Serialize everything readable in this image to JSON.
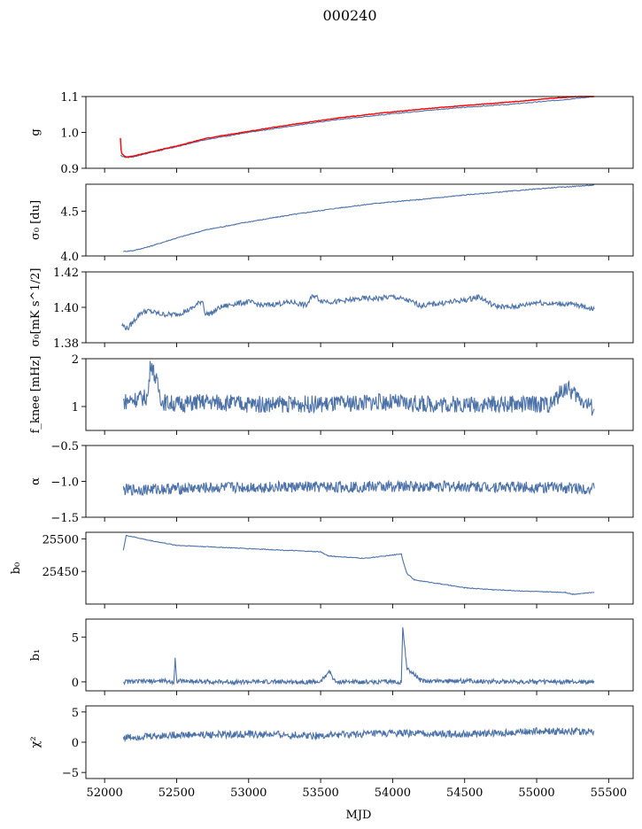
{
  "figure": {
    "title": "000240",
    "xlabel": "MJD",
    "x_tick_labels": [
      "52000",
      "52500",
      "53000",
      "53500",
      "54000",
      "54500",
      "55000",
      "55500"
    ]
  },
  "chart_data": [
    {
      "type": "line",
      "ylabel": "g",
      "xlim": [
        51870,
        55670
      ],
      "ylim": [
        0.9,
        1.1
      ],
      "y_ticks": [
        0.9,
        1.0,
        1.1
      ],
      "y_tick_labels": [
        "0.9",
        "1.0",
        "1.1"
      ],
      "series": [
        {
          "color": "#4c72a8",
          "x": [
            52110,
            52150,
            52200,
            52300,
            52500,
            52700,
            53000,
            53300,
            53600,
            53900,
            54200,
            54500,
            54800,
            55100,
            55400
          ],
          "y": [
            0.935,
            0.93,
            0.932,
            0.942,
            0.96,
            0.98,
            1.0,
            1.018,
            1.035,
            1.048,
            1.06,
            1.07,
            1.078,
            1.088,
            1.1
          ]
        },
        {
          "color": "#ff0000",
          "x": [
            52110,
            52115,
            52120,
            52135,
            52150,
            52200,
            52300,
            52500,
            52700,
            53000,
            53300,
            53600,
            53900,
            54200,
            54500,
            54800,
            55100,
            55400
          ],
          "y": [
            0.985,
            0.95,
            0.94,
            0.935,
            0.932,
            0.934,
            0.944,
            0.962,
            0.983,
            1.003,
            1.022,
            1.039,
            1.053,
            1.065,
            1.075,
            1.084,
            1.095,
            1.103
          ]
        }
      ]
    },
    {
      "type": "line",
      "ylabel": "σ₀ [du]",
      "xlim": [
        51870,
        55670
      ],
      "ylim": [
        4.0,
        4.8
      ],
      "y_ticks": [
        4.0,
        4.5
      ],
      "y_tick_labels": [
        "4.0",
        "4.5"
      ],
      "series": [
        {
          "color": "#4c72a8",
          "x": [
            52130,
            52200,
            52300,
            52500,
            52700,
            53000,
            53300,
            53600,
            53900,
            54200,
            54500,
            54800,
            55100,
            55400
          ],
          "y": [
            4.05,
            4.06,
            4.1,
            4.2,
            4.29,
            4.38,
            4.46,
            4.53,
            4.59,
            4.63,
            4.68,
            4.72,
            4.76,
            4.79
          ]
        }
      ]
    },
    {
      "type": "line",
      "ylabel": "σ₀[mK s^1/2]",
      "xlim": [
        51870,
        55670
      ],
      "ylim": [
        1.38,
        1.42
      ],
      "y_ticks": [
        1.38,
        1.4,
        1.42
      ],
      "y_tick_labels": [
        "1.38",
        "1.40",
        "1.42"
      ],
      "series": [
        {
          "color": "#4c72a8",
          "x": [
            52120,
            52160,
            52200,
            52250,
            52300,
            52400,
            52500,
            52600,
            52680,
            52700,
            52750,
            52800,
            52900,
            53000,
            53100,
            53200,
            53300,
            53400,
            53450,
            53500,
            53600,
            53700,
            53800,
            53900,
            54000,
            54100,
            54200,
            54300,
            54400,
            54500,
            54600,
            54700,
            54800,
            54900,
            55000,
            55100,
            55200,
            55300,
            55400
          ],
          "y": [
            1.39,
            1.388,
            1.392,
            1.397,
            1.398,
            1.396,
            1.396,
            1.399,
            1.404,
            1.396,
            1.397,
            1.4,
            1.402,
            1.403,
            1.401,
            1.402,
            1.403,
            1.401,
            1.407,
            1.404,
            1.403,
            1.404,
            1.405,
            1.405,
            1.406,
            1.404,
            1.401,
            1.402,
            1.403,
            1.404,
            1.406,
            1.401,
            1.4,
            1.401,
            1.403,
            1.402,
            1.402,
            1.401,
            1.399
          ]
        }
      ]
    },
    {
      "type": "line",
      "ylabel": "f_knee [mHz]",
      "xlim": [
        51870,
        55670
      ],
      "ylim": [
        0.5,
        2.0
      ],
      "y_ticks": [
        1,
        2
      ],
      "y_tick_labels": [
        "1",
        "2"
      ],
      "series": [
        {
          "color": "#4c72a8",
          "x": [
            52130,
            52200,
            52300,
            52320,
            52400,
            52500,
            52700,
            53000,
            53300,
            53600,
            53900,
            54200,
            54500,
            54800,
            55100,
            55200,
            55400
          ],
          "y": [
            1.1,
            1.15,
            1.2,
            1.95,
            1.1,
            1.05,
            1.1,
            1.05,
            1.05,
            1.05,
            1.1,
            1.05,
            1.05,
            1.05,
            1.05,
            1.4,
            0.95
          ]
        }
      ]
    },
    {
      "type": "line",
      "ylabel": "α",
      "xlim": [
        51870,
        55670
      ],
      "ylim": [
        -1.5,
        -0.5
      ],
      "y_ticks": [
        -1.5,
        -1.0,
        -0.5
      ],
      "y_tick_labels": [
        "−1.5",
        "−1.0",
        "−0.5"
      ],
      "series": [
        {
          "color": "#4c72a8",
          "x": [
            52130,
            52500,
            53000,
            53500,
            54000,
            54500,
            55000,
            55400
          ],
          "y": [
            -1.12,
            -1.1,
            -1.08,
            -1.08,
            -1.07,
            -1.07,
            -1.08,
            -1.1
          ]
        }
      ]
    },
    {
      "type": "line",
      "ylabel": "b₀",
      "xlim": [
        51870,
        55670
      ],
      "ylim": [
        25400,
        25510
      ],
      "y_ticks": [
        25450,
        25500
      ],
      "y_tick_labels": [
        "25450",
        "25500"
      ],
      "series": [
        {
          "color": "#4c72a8",
          "x": [
            52130,
            52150,
            52200,
            52300,
            52500,
            52700,
            53000,
            53300,
            53500,
            53550,
            53600,
            53800,
            54000,
            54060,
            54080,
            54100,
            54150,
            54300,
            54500,
            54700,
            55000,
            55200,
            55250,
            55400
          ],
          "y": [
            25483,
            25505,
            25503,
            25498,
            25490,
            25488,
            25485,
            25482,
            25480,
            25474,
            25473,
            25470,
            25475,
            25477,
            25460,
            25447,
            25437,
            25432,
            25425,
            25422,
            25419,
            25418,
            25415,
            25418
          ]
        }
      ]
    },
    {
      "type": "line",
      "ylabel": "b₁",
      "xlim": [
        51870,
        55670
      ],
      "ylim": [
        -1,
        7
      ],
      "y_ticks": [
        0,
        5
      ],
      "y_tick_labels": [
        "0",
        "5"
      ],
      "series": [
        {
          "color": "#4c72a8",
          "x": [
            52130,
            52400,
            52480,
            52490,
            52500,
            52800,
            53200,
            53500,
            53560,
            53600,
            54000,
            54060,
            54070,
            54100,
            54200,
            54500,
            55000,
            55400
          ],
          "y": [
            0.0,
            0.1,
            0.0,
            2.6,
            0.1,
            0.0,
            0.0,
            0.0,
            1.2,
            0.0,
            0.0,
            0.0,
            6.0,
            1.5,
            0.1,
            0.1,
            0.0,
            0.0
          ]
        }
      ]
    },
    {
      "type": "line",
      "ylabel": "χ²",
      "xlim": [
        51870,
        55670
      ],
      "ylim": [
        -6,
        6
      ],
      "y_ticks": [
        -5,
        0,
        5
      ],
      "y_tick_labels": [
        "−5",
        "0",
        "5"
      ],
      "series": [
        {
          "color": "#4c72a8",
          "x": [
            52130,
            52500,
            53000,
            53500,
            54000,
            54500,
            55000,
            55400
          ],
          "y": [
            0.8,
            1.2,
            1.3,
            1.1,
            1.5,
            1.3,
            1.8,
            1.8
          ]
        }
      ]
    }
  ]
}
